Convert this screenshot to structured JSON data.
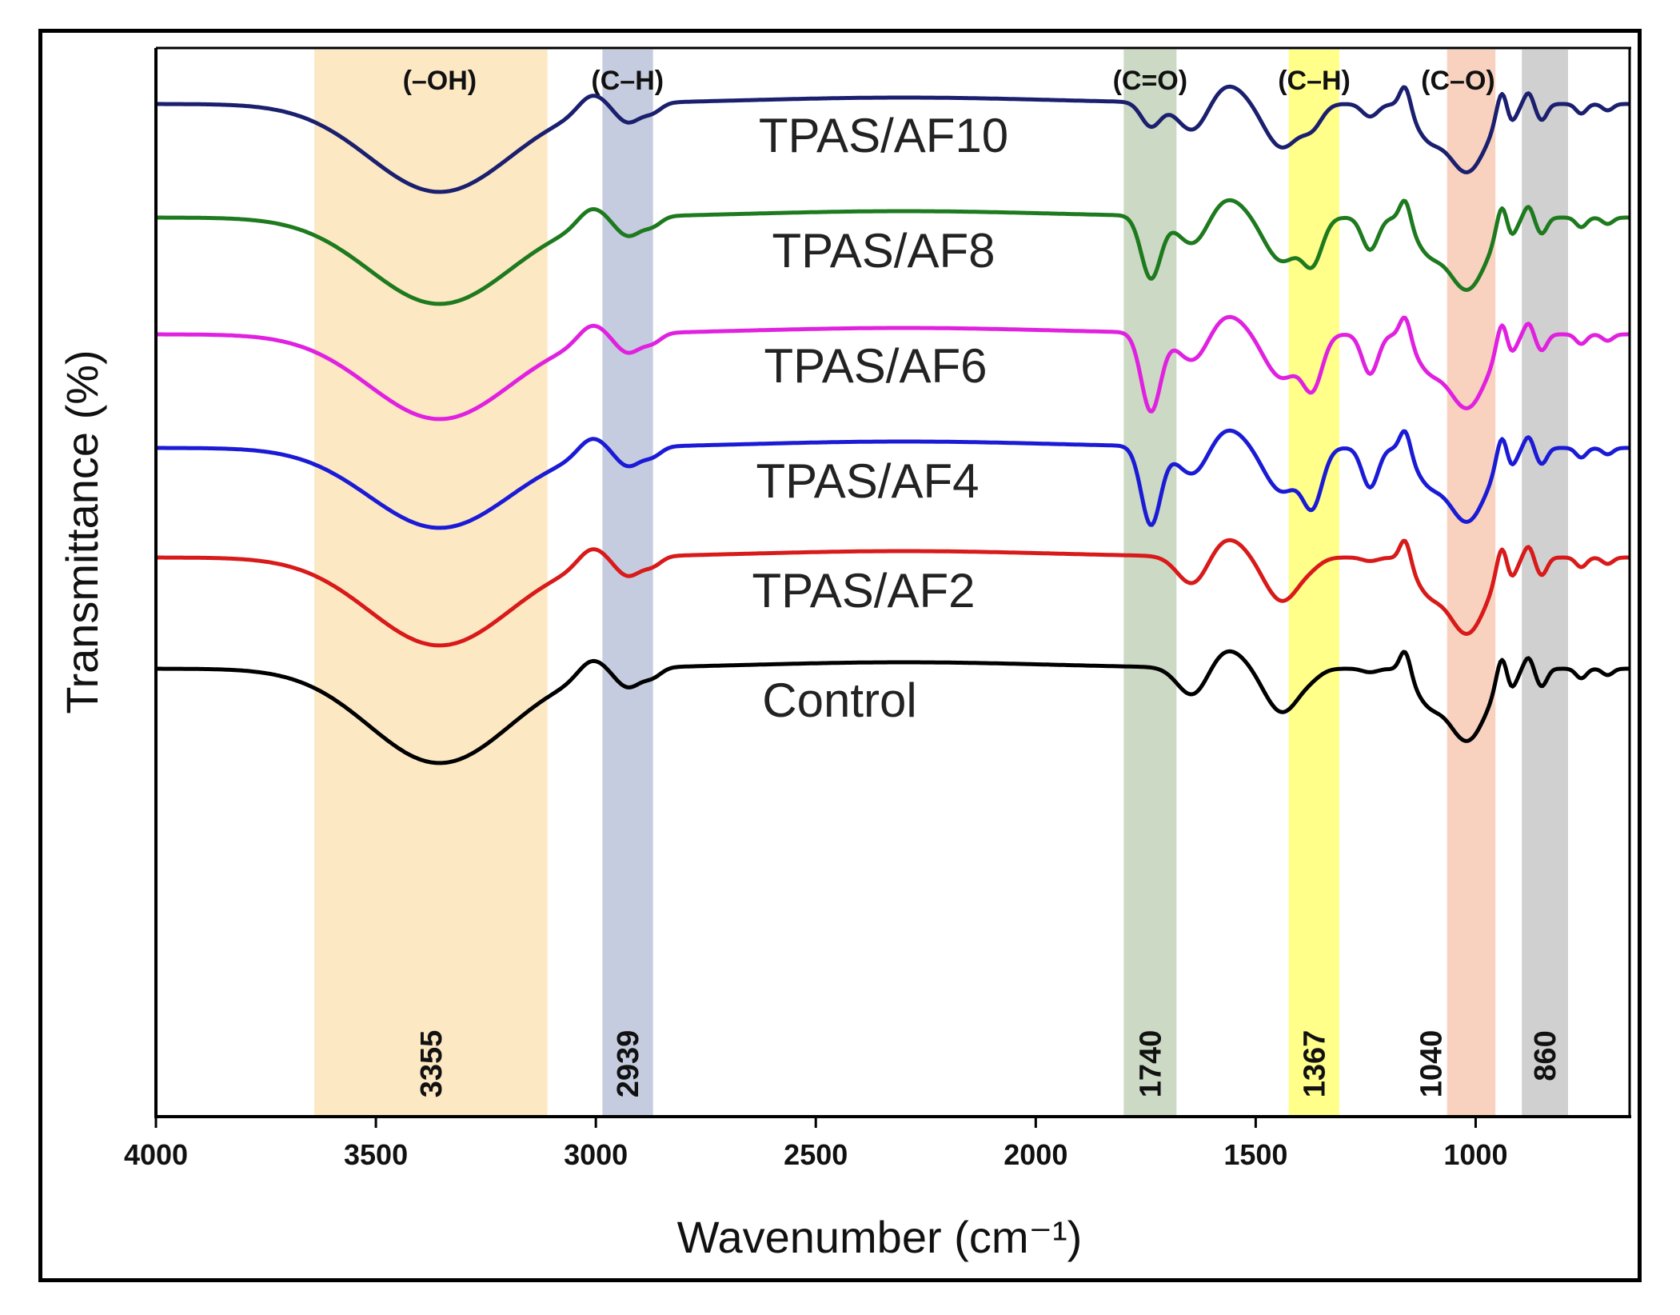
{
  "chart_data": {
    "type": "line",
    "title": "",
    "xlabel": "Wavenumber (cm⁻¹)",
    "ylabel": "Transmittance (%)",
    "xlim": [
      4000,
      650
    ],
    "x_reversed": true,
    "grid": false,
    "x_ticks": [
      4000,
      3500,
      3000,
      2500,
      2000,
      1500,
      1000
    ],
    "bands": [
      {
        "group": "(–OH)",
        "peak": "3355",
        "from": 3640,
        "to": 3110,
        "color": "#fde8c4"
      },
      {
        "group": "(C–H)",
        "peak": "2939",
        "from": 2985,
        "to": 2870,
        "color": "#c6ccdf"
      },
      {
        "group": "(C=O)",
        "peak": "1740",
        "from": 1800,
        "to": 1680,
        "color": "#ccd9c4"
      },
      {
        "group": "(C–H)",
        "peak": "1367",
        "from": 1425,
        "to": 1310,
        "color": "#ffff8a"
      },
      {
        "group": "(C–O)",
        "peak": "1040",
        "from": 1065,
        "to": 955,
        "color": "#f8d2bf"
      },
      {
        "group": "",
        "peak": "860",
        "from": 895,
        "to": 790,
        "color": "#d0d0d0"
      }
    ],
    "series": [
      {
        "name": "TPAS/AF10",
        "color": "#1a1f6e",
        "baseline": 130,
        "oh": 110,
        "ch": 22,
        "co": 30,
        "ch2": 22,
        "cop": 85,
        "sec": 0.35,
        "minor": 20
      },
      {
        "name": "TPAS/AF8",
        "color": "#1e7a1e",
        "baseline": 272,
        "oh": 108,
        "ch": 22,
        "co": 78,
        "ch2": 50,
        "cop": 90,
        "sec": 0.9,
        "minor": 20
      },
      {
        "name": "TPAS/AF6",
        "color": "#e021e0",
        "baseline": 418,
        "oh": 106,
        "ch": 22,
        "co": 98,
        "ch2": 60,
        "cop": 92,
        "sec": 1.1,
        "minor": 20
      },
      {
        "name": "TPAS/AF4",
        "color": "#1b1bd6",
        "baseline": 560,
        "oh": 100,
        "ch": 22,
        "co": 98,
        "ch2": 65,
        "cop": 92,
        "sec": 1.1,
        "minor": 20
      },
      {
        "name": "TPAS/AF2",
        "color": "#d81a1a",
        "baseline": 697,
        "oh": 110,
        "ch": 22,
        "co": 0,
        "ch2": 5,
        "cop": 95,
        "sec": 0.1,
        "minor": 22
      },
      {
        "name": "Control",
        "color": "#000000",
        "baseline": 836,
        "oh": 118,
        "ch": 22,
        "co": 0,
        "ch2": 5,
        "cop": 90,
        "sec": 0.1,
        "minor": 22
      }
    ]
  }
}
